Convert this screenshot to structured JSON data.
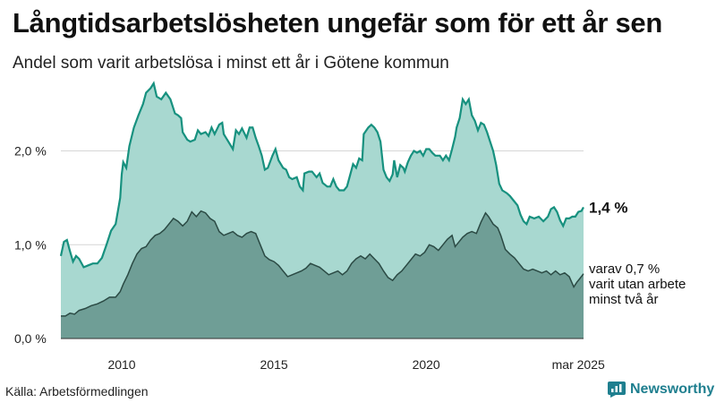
{
  "title": "Långtidsarbetslösheten ungefär som för ett år sen",
  "subtitle": "Andel som varit arbetslösa i minst ett år i Götene kommun",
  "source": "Källa: Arbetsförmedlingen",
  "brand": "Newsworthy",
  "colors": {
    "upper_fill": "#a8d8d0",
    "upper_line": "#17917f",
    "lower_fill": "#6f9e96",
    "lower_line": "#2b4a44",
    "grid": "#d6d6d6",
    "brand": "#1f7f8f"
  },
  "chart_data": {
    "type": "area",
    "x_unit": "year",
    "xlim": [
      2008.0,
      2025.17
    ],
    "ylim": [
      0,
      2.75
    ],
    "y_ticks": [
      {
        "value": 0,
        "label": "0,0 %"
      },
      {
        "value": 1,
        "label": "1,0 %"
      },
      {
        "value": 2,
        "label": "2,0 %"
      }
    ],
    "x_ticks": [
      {
        "value": 2010,
        "label": "2010"
      },
      {
        "value": 2015,
        "label": "2015"
      },
      {
        "value": 2020,
        "label": "2020"
      },
      {
        "value": 2025,
        "label": "mar 2025"
      }
    ],
    "grid": true,
    "series": [
      {
        "name": "minst ett år",
        "end_label": "1,4 %",
        "points": [
          [
            2008.0,
            0.88
          ],
          [
            2008.1,
            1.03
          ],
          [
            2008.2,
            1.05
          ],
          [
            2008.3,
            0.93
          ],
          [
            2008.4,
            0.82
          ],
          [
            2008.5,
            0.88
          ],
          [
            2008.6,
            0.85
          ],
          [
            2008.75,
            0.76
          ],
          [
            2008.9,
            0.78
          ],
          [
            2009.05,
            0.8
          ],
          [
            2009.2,
            0.8
          ],
          [
            2009.35,
            0.86
          ],
          [
            2009.5,
            1.0
          ],
          [
            2009.65,
            1.15
          ],
          [
            2009.8,
            1.22
          ],
          [
            2009.95,
            1.5
          ],
          [
            2010.0,
            1.75
          ],
          [
            2010.05,
            1.88
          ],
          [
            2010.15,
            1.82
          ],
          [
            2010.25,
            2.05
          ],
          [
            2010.4,
            2.25
          ],
          [
            2010.55,
            2.38
          ],
          [
            2010.7,
            2.5
          ],
          [
            2010.8,
            2.62
          ],
          [
            2010.95,
            2.67
          ],
          [
            2011.05,
            2.72
          ],
          [
            2011.15,
            2.58
          ],
          [
            2011.3,
            2.55
          ],
          [
            2011.45,
            2.62
          ],
          [
            2011.6,
            2.55
          ],
          [
            2011.75,
            2.4
          ],
          [
            2011.85,
            2.38
          ],
          [
            2011.95,
            2.35
          ],
          [
            2012.0,
            2.2
          ],
          [
            2012.15,
            2.12
          ],
          [
            2012.25,
            2.1
          ],
          [
            2012.4,
            2.12
          ],
          [
            2012.5,
            2.22
          ],
          [
            2012.6,
            2.18
          ],
          [
            2012.75,
            2.2
          ],
          [
            2012.85,
            2.16
          ],
          [
            2012.95,
            2.25
          ],
          [
            2013.05,
            2.18
          ],
          [
            2013.2,
            2.28
          ],
          [
            2013.3,
            2.3
          ],
          [
            2013.35,
            2.18
          ],
          [
            2013.5,
            2.1
          ],
          [
            2013.65,
            2.02
          ],
          [
            2013.75,
            2.22
          ],
          [
            2013.85,
            2.18
          ],
          [
            2013.95,
            2.24
          ],
          [
            2014.1,
            2.14
          ],
          [
            2014.2,
            2.25
          ],
          [
            2014.3,
            2.25
          ],
          [
            2014.4,
            2.14
          ],
          [
            2014.5,
            2.05
          ],
          [
            2014.6,
            1.95
          ],
          [
            2014.7,
            1.8
          ],
          [
            2014.8,
            1.82
          ],
          [
            2014.95,
            1.95
          ],
          [
            2015.05,
            2.02
          ],
          [
            2015.15,
            1.9
          ],
          [
            2015.3,
            1.82
          ],
          [
            2015.4,
            1.8
          ],
          [
            2015.5,
            1.72
          ],
          [
            2015.6,
            1.7
          ],
          [
            2015.75,
            1.72
          ],
          [
            2015.85,
            1.62
          ],
          [
            2015.95,
            1.58
          ],
          [
            2016.0,
            1.76
          ],
          [
            2016.15,
            1.78
          ],
          [
            2016.25,
            1.78
          ],
          [
            2016.4,
            1.72
          ],
          [
            2016.5,
            1.76
          ],
          [
            2016.6,
            1.66
          ],
          [
            2016.75,
            1.62
          ],
          [
            2016.85,
            1.62
          ],
          [
            2016.95,
            1.7
          ],
          [
            2017.05,
            1.62
          ],
          [
            2017.15,
            1.58
          ],
          [
            2017.3,
            1.58
          ],
          [
            2017.4,
            1.62
          ],
          [
            2017.5,
            1.74
          ],
          [
            2017.6,
            1.86
          ],
          [
            2017.7,
            1.82
          ],
          [
            2017.8,
            1.92
          ],
          [
            2017.9,
            1.9
          ],
          [
            2017.95,
            2.18
          ],
          [
            2018.1,
            2.25
          ],
          [
            2018.2,
            2.28
          ],
          [
            2018.3,
            2.25
          ],
          [
            2018.4,
            2.2
          ],
          [
            2018.5,
            2.1
          ],
          [
            2018.6,
            1.8
          ],
          [
            2018.7,
            1.72
          ],
          [
            2018.8,
            1.68
          ],
          [
            2018.9,
            1.75
          ],
          [
            2018.95,
            1.9
          ],
          [
            2019.05,
            1.72
          ],
          [
            2019.15,
            1.85
          ],
          [
            2019.25,
            1.82
          ],
          [
            2019.3,
            1.78
          ],
          [
            2019.4,
            1.88
          ],
          [
            2019.5,
            1.95
          ],
          [
            2019.6,
            2.0
          ],
          [
            2019.7,
            1.98
          ],
          [
            2019.8,
            2.0
          ],
          [
            2019.9,
            1.95
          ],
          [
            2020.0,
            2.02
          ],
          [
            2020.1,
            2.02
          ],
          [
            2020.2,
            1.98
          ],
          [
            2020.3,
            1.95
          ],
          [
            2020.45,
            1.95
          ],
          [
            2020.55,
            1.9
          ],
          [
            2020.65,
            1.95
          ],
          [
            2020.75,
            1.9
          ],
          [
            2020.85,
            2.02
          ],
          [
            2020.95,
            2.15
          ],
          [
            2021.0,
            2.25
          ],
          [
            2021.1,
            2.35
          ],
          [
            2021.2,
            2.55
          ],
          [
            2021.3,
            2.5
          ],
          [
            2021.4,
            2.55
          ],
          [
            2021.5,
            2.38
          ],
          [
            2021.6,
            2.32
          ],
          [
            2021.7,
            2.22
          ],
          [
            2021.8,
            2.3
          ],
          [
            2021.9,
            2.28
          ],
          [
            2022.0,
            2.2
          ],
          [
            2022.1,
            2.1
          ],
          [
            2022.2,
            2.0
          ],
          [
            2022.3,
            1.85
          ],
          [
            2022.4,
            1.65
          ],
          [
            2022.5,
            1.58
          ],
          [
            2022.65,
            1.55
          ],
          [
            2022.75,
            1.52
          ],
          [
            2022.85,
            1.48
          ],
          [
            2023.0,
            1.42
          ],
          [
            2023.1,
            1.32
          ],
          [
            2023.2,
            1.25
          ],
          [
            2023.3,
            1.22
          ],
          [
            2023.4,
            1.3
          ],
          [
            2023.55,
            1.28
          ],
          [
            2023.7,
            1.3
          ],
          [
            2023.85,
            1.25
          ],
          [
            2024.0,
            1.3
          ],
          [
            2024.1,
            1.38
          ],
          [
            2024.2,
            1.4
          ],
          [
            2024.3,
            1.35
          ],
          [
            2024.4,
            1.26
          ],
          [
            2024.5,
            1.2
          ],
          [
            2024.6,
            1.28
          ],
          [
            2024.7,
            1.28
          ],
          [
            2024.8,
            1.3
          ],
          [
            2024.9,
            1.3
          ],
          [
            2025.0,
            1.35
          ],
          [
            2025.1,
            1.36
          ],
          [
            2025.17,
            1.4
          ]
        ]
      },
      {
        "name": "varit utan arbete minst två år",
        "end_label": "varav 0,7 %",
        "end_label_lines": [
          "varit utan arbete",
          "minst två år"
        ],
        "points": [
          [
            2008.0,
            0.24
          ],
          [
            2008.15,
            0.24
          ],
          [
            2008.3,
            0.27
          ],
          [
            2008.45,
            0.26
          ],
          [
            2008.6,
            0.3
          ],
          [
            2008.8,
            0.32
          ],
          [
            2009.0,
            0.35
          ],
          [
            2009.2,
            0.37
          ],
          [
            2009.4,
            0.4
          ],
          [
            2009.6,
            0.44
          ],
          [
            2009.8,
            0.44
          ],
          [
            2009.95,
            0.5
          ],
          [
            2010.05,
            0.58
          ],
          [
            2010.2,
            0.68
          ],
          [
            2010.35,
            0.8
          ],
          [
            2010.5,
            0.9
          ],
          [
            2010.65,
            0.96
          ],
          [
            2010.8,
            0.98
          ],
          [
            2010.95,
            1.05
          ],
          [
            2011.1,
            1.1
          ],
          [
            2011.25,
            1.12
          ],
          [
            2011.4,
            1.16
          ],
          [
            2011.55,
            1.22
          ],
          [
            2011.7,
            1.28
          ],
          [
            2011.85,
            1.25
          ],
          [
            2012.0,
            1.2
          ],
          [
            2012.15,
            1.25
          ],
          [
            2012.3,
            1.35
          ],
          [
            2012.45,
            1.3
          ],
          [
            2012.6,
            1.36
          ],
          [
            2012.75,
            1.34
          ],
          [
            2012.9,
            1.28
          ],
          [
            2013.05,
            1.25
          ],
          [
            2013.2,
            1.14
          ],
          [
            2013.35,
            1.1
          ],
          [
            2013.5,
            1.12
          ],
          [
            2013.65,
            1.14
          ],
          [
            2013.8,
            1.1
          ],
          [
            2013.95,
            1.08
          ],
          [
            2014.1,
            1.12
          ],
          [
            2014.25,
            1.14
          ],
          [
            2014.4,
            1.12
          ],
          [
            2014.55,
            1.0
          ],
          [
            2014.7,
            0.88
          ],
          [
            2014.85,
            0.84
          ],
          [
            2015.0,
            0.82
          ],
          [
            2015.15,
            0.78
          ],
          [
            2015.3,
            0.72
          ],
          [
            2015.45,
            0.66
          ],
          [
            2015.6,
            0.68
          ],
          [
            2015.75,
            0.7
          ],
          [
            2015.9,
            0.72
          ],
          [
            2016.05,
            0.75
          ],
          [
            2016.2,
            0.8
          ],
          [
            2016.35,
            0.78
          ],
          [
            2016.5,
            0.76
          ],
          [
            2016.65,
            0.72
          ],
          [
            2016.8,
            0.68
          ],
          [
            2016.95,
            0.7
          ],
          [
            2017.1,
            0.72
          ],
          [
            2017.25,
            0.68
          ],
          [
            2017.4,
            0.72
          ],
          [
            2017.55,
            0.8
          ],
          [
            2017.7,
            0.85
          ],
          [
            2017.85,
            0.88
          ],
          [
            2018.0,
            0.85
          ],
          [
            2018.15,
            0.9
          ],
          [
            2018.3,
            0.85
          ],
          [
            2018.45,
            0.8
          ],
          [
            2018.6,
            0.72
          ],
          [
            2018.75,
            0.65
          ],
          [
            2018.9,
            0.62
          ],
          [
            2019.05,
            0.68
          ],
          [
            2019.2,
            0.72
          ],
          [
            2019.35,
            0.78
          ],
          [
            2019.5,
            0.84
          ],
          [
            2019.65,
            0.9
          ],
          [
            2019.8,
            0.88
          ],
          [
            2019.95,
            0.92
          ],
          [
            2020.1,
            1.0
          ],
          [
            2020.25,
            0.98
          ],
          [
            2020.4,
            0.94
          ],
          [
            2020.55,
            1.0
          ],
          [
            2020.7,
            1.06
          ],
          [
            2020.85,
            1.1
          ],
          [
            2020.95,
            0.98
          ],
          [
            2021.05,
            1.02
          ],
          [
            2021.2,
            1.08
          ],
          [
            2021.35,
            1.12
          ],
          [
            2021.5,
            1.14
          ],
          [
            2021.65,
            1.12
          ],
          [
            2021.8,
            1.24
          ],
          [
            2021.95,
            1.34
          ],
          [
            2022.05,
            1.3
          ],
          [
            2022.2,
            1.22
          ],
          [
            2022.35,
            1.18
          ],
          [
            2022.45,
            1.1
          ],
          [
            2022.6,
            0.95
          ],
          [
            2022.75,
            0.9
          ],
          [
            2022.9,
            0.86
          ],
          [
            2023.05,
            0.8
          ],
          [
            2023.2,
            0.74
          ],
          [
            2023.35,
            0.72
          ],
          [
            2023.5,
            0.74
          ],
          [
            2023.65,
            0.72
          ],
          [
            2023.8,
            0.7
          ],
          [
            2023.95,
            0.72
          ],
          [
            2024.1,
            0.68
          ],
          [
            2024.25,
            0.72
          ],
          [
            2024.4,
            0.68
          ],
          [
            2024.55,
            0.7
          ],
          [
            2024.7,
            0.66
          ],
          [
            2024.85,
            0.55
          ],
          [
            2024.95,
            0.6
          ],
          [
            2025.05,
            0.64
          ],
          [
            2025.17,
            0.69
          ]
        ]
      }
    ]
  }
}
